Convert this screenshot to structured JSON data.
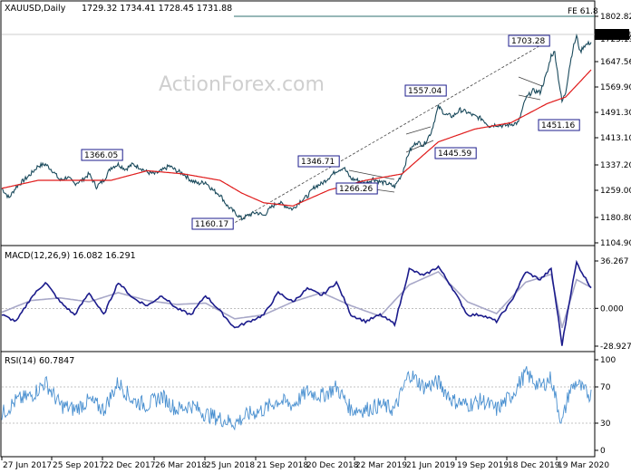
{
  "header": {
    "symbol": "XAUUSD,Daily",
    "ohlc": "1729.32 1734.41 1728.45 1731.88"
  },
  "watermark": "ActionForex.com",
  "colors": {
    "price": "#1a4a5c",
    "ma": "#e01b1b",
    "macd": "#1c1c8c",
    "signal": "#a8a8c8",
    "rsi": "#4a90d0",
    "fe_line": "#2f6f6f",
    "trend": "#444444",
    "annotation_border": "#1c1c8c"
  },
  "chart_data": [
    {
      "type": "line",
      "name": "price-panel",
      "x_dates": [
        "27 Jun 2017",
        "25 Sep 2017",
        "22 Dec 2017",
        "26 Mar 2018",
        "25 Jun 2018",
        "21 Sep 2018",
        "20 Dec 2018",
        "22 Mar 2019",
        "21 Jun 2019",
        "19 Sep 2019",
        "18 Dec 2019",
        "19 Mar 2020"
      ],
      "y_ticks": [
        "1802.82",
        "1725.19",
        "1647.56",
        "1569.90",
        "1491.30",
        "1413.10",
        "1337.20",
        "1259.00",
        "1180.80",
        "1104.90"
      ],
      "ylim": [
        1104.9,
        1812
      ],
      "last_price_label": "1731.88",
      "fe_label": "FE 61.8",
      "fe_level": 1790,
      "series_price": [
        [
          0,
          1275
        ],
        [
          8,
          1245
        ],
        [
          16,
          1280
        ],
        [
          24,
          1300
        ],
        [
          32,
          1320
        ],
        [
          40,
          1345
        ],
        [
          48,
          1350
        ],
        [
          56,
          1330
        ],
        [
          64,
          1300
        ],
        [
          72,
          1310
        ],
        [
          80,
          1290
        ],
        [
          88,
          1300
        ],
        [
          96,
          1320
        ],
        [
          104,
          1280
        ],
        [
          112,
          1300
        ],
        [
          120,
          1340
        ],
        [
          128,
          1350
        ],
        [
          136,
          1335
        ],
        [
          144,
          1350
        ],
        [
          152,
          1340
        ],
        [
          160,
          1325
        ],
        [
          168,
          1320
        ],
        [
          176,
          1330
        ],
        [
          184,
          1345
        ],
        [
          192,
          1330
        ],
        [
          200,
          1320
        ],
        [
          208,
          1300
        ],
        [
          216,
          1290
        ],
        [
          224,
          1295
        ],
        [
          232,
          1270
        ],
        [
          240,
          1255
        ],
        [
          248,
          1220
        ],
        [
          256,
          1200
        ],
        [
          264,
          1180
        ],
        [
          272,
          1192
        ],
        [
          280,
          1200
        ],
        [
          288,
          1190
        ],
        [
          296,
          1215
        ],
        [
          304,
          1232
        ],
        [
          312,
          1220
        ],
        [
          320,
          1210
        ],
        [
          328,
          1235
        ],
        [
          336,
          1250
        ],
        [
          344,
          1280
        ],
        [
          352,
          1290
        ],
        [
          360,
          1310
        ],
        [
          368,
          1330
        ],
        [
          376,
          1340
        ],
        [
          384,
          1305
        ],
        [
          392,
          1300
        ],
        [
          400,
          1290
        ],
        [
          408,
          1305
        ],
        [
          416,
          1295
        ],
        [
          424,
          1290
        ],
        [
          432,
          1280
        ],
        [
          440,
          1320
        ],
        [
          448,
          1390
        ],
        [
          456,
          1420
        ],
        [
          464,
          1410
        ],
        [
          472,
          1450
        ],
        [
          480,
          1530
        ],
        [
          488,
          1505
        ],
        [
          496,
          1500
        ],
        [
          504,
          1520
        ],
        [
          512,
          1512
        ],
        [
          520,
          1500
        ],
        [
          528,
          1492
        ],
        [
          536,
          1470
        ],
        [
          544,
          1474
        ],
        [
          552,
          1470
        ],
        [
          560,
          1475
        ],
        [
          568,
          1480
        ],
        [
          576,
          1555
        ],
        [
          584,
          1580
        ],
        [
          592,
          1575
        ],
        [
          600,
          1640
        ],
        [
          604,
          1690
        ],
        [
          608,
          1700
        ],
        [
          612,
          1620
        ],
        [
          616,
          1545
        ],
        [
          620,
          1575
        ],
        [
          624,
          1650
        ],
        [
          628,
          1710
        ],
        [
          632,
          1750
        ],
        [
          636,
          1700
        ],
        [
          640,
          1720
        ],
        [
          644,
          1725
        ],
        [
          648,
          1731
        ]
      ],
      "series_ma": [
        [
          0,
          1275
        ],
        [
          40,
          1300
        ],
        [
          80,
          1300
        ],
        [
          120,
          1300
        ],
        [
          160,
          1330
        ],
        [
          200,
          1320
        ],
        [
          240,
          1300
        ],
        [
          264,
          1260
        ],
        [
          288,
          1230
        ],
        [
          320,
          1220
        ],
        [
          360,
          1270
        ],
        [
          400,
          1300
        ],
        [
          440,
          1320
        ],
        [
          480,
          1420
        ],
        [
          520,
          1460
        ],
        [
          560,
          1480
        ],
        [
          600,
          1540
        ],
        [
          620,
          1560
        ],
        [
          648,
          1645
        ]
      ],
      "annotations": [
        {
          "label": "1366.05"
        },
        {
          "label": "1160.17"
        },
        {
          "label": "1346.71"
        },
        {
          "label": "1266.26"
        },
        {
          "label": "1557.04"
        },
        {
          "label": "1445.59"
        },
        {
          "label": "1703.28"
        },
        {
          "label": "1451.16"
        }
      ]
    },
    {
      "type": "line",
      "name": "macd-panel",
      "title": "MACD(12,26,9) 16.082 16.291",
      "y_ticks": [
        "36.267",
        "0.000",
        "-28.927"
      ],
      "ylim": [
        -28.927,
        36.267
      ],
      "series_macd": [
        [
          0,
          -5
        ],
        [
          16,
          -10
        ],
        [
          32,
          8
        ],
        [
          48,
          20
        ],
        [
          64,
          5
        ],
        [
          80,
          -5
        ],
        [
          96,
          12
        ],
        [
          112,
          -5
        ],
        [
          128,
          20
        ],
        [
          144,
          8
        ],
        [
          160,
          2
        ],
        [
          176,
          10
        ],
        [
          192,
          0
        ],
        [
          208,
          -5
        ],
        [
          224,
          10
        ],
        [
          240,
          -2
        ],
        [
          256,
          -15
        ],
        [
          272,
          -10
        ],
        [
          288,
          -5
        ],
        [
          304,
          12
        ],
        [
          320,
          5
        ],
        [
          336,
          15
        ],
        [
          352,
          10
        ],
        [
          368,
          20
        ],
        [
          384,
          -5
        ],
        [
          400,
          -10
        ],
        [
          416,
          -5
        ],
        [
          432,
          -12
        ],
        [
          448,
          30
        ],
        [
          464,
          25
        ],
        [
          480,
          32
        ],
        [
          496,
          15
        ],
        [
          512,
          -5
        ],
        [
          528,
          -5
        ],
        [
          544,
          -10
        ],
        [
          560,
          5
        ],
        [
          576,
          28
        ],
        [
          592,
          22
        ],
        [
          604,
          30
        ],
        [
          612,
          -8
        ],
        [
          616,
          -28
        ],
        [
          624,
          5
        ],
        [
          632,
          35
        ],
        [
          640,
          25
        ],
        [
          648,
          16
        ]
      ],
      "series_signal": [
        [
          0,
          -3
        ],
        [
          32,
          6
        ],
        [
          64,
          8
        ],
        [
          96,
          5
        ],
        [
          128,
          12
        ],
        [
          160,
          6
        ],
        [
          192,
          3
        ],
        [
          224,
          4
        ],
        [
          256,
          -8
        ],
        [
          288,
          -5
        ],
        [
          320,
          5
        ],
        [
          352,
          12
        ],
        [
          384,
          2
        ],
        [
          416,
          -6
        ],
        [
          448,
          18
        ],
        [
          480,
          28
        ],
        [
          512,
          5
        ],
        [
          544,
          -4
        ],
        [
          576,
          20
        ],
        [
          604,
          26
        ],
        [
          616,
          -15
        ],
        [
          632,
          22
        ],
        [
          648,
          16
        ]
      ]
    },
    {
      "type": "line",
      "name": "rsi-panel",
      "title": "RSI(14) 60.7847",
      "y_ticks": [
        "100",
        "70",
        "30",
        "0"
      ],
      "ylim": [
        0,
        100
      ],
      "levels": [
        70,
        30
      ],
      "series_rsi": [
        [
          0,
          40
        ],
        [
          16,
          55
        ],
        [
          32,
          60
        ],
        [
          48,
          75
        ],
        [
          64,
          50
        ],
        [
          80,
          45
        ],
        [
          96,
          55
        ],
        [
          112,
          45
        ],
        [
          128,
          75
        ],
        [
          144,
          55
        ],
        [
          160,
          50
        ],
        [
          176,
          60
        ],
        [
          192,
          45
        ],
        [
          208,
          50
        ],
        [
          224,
          40
        ],
        [
          240,
          35
        ],
        [
          256,
          30
        ],
        [
          272,
          40
        ],
        [
          288,
          45
        ],
        [
          304,
          55
        ],
        [
          320,
          50
        ],
        [
          336,
          65
        ],
        [
          352,
          60
        ],
        [
          368,
          70
        ],
        [
          384,
          45
        ],
        [
          400,
          45
        ],
        [
          416,
          50
        ],
        [
          432,
          45
        ],
        [
          448,
          85
        ],
        [
          464,
          70
        ],
        [
          480,
          75
        ],
        [
          496,
          55
        ],
        [
          512,
          50
        ],
        [
          528,
          55
        ],
        [
          544,
          45
        ],
        [
          560,
          60
        ],
        [
          576,
          85
        ],
        [
          592,
          70
        ],
        [
          604,
          80
        ],
        [
          612,
          45
        ],
        [
          616,
          30
        ],
        [
          624,
          65
        ],
        [
          632,
          75
        ],
        [
          640,
          65
        ],
        [
          648,
          61
        ]
      ]
    }
  ]
}
